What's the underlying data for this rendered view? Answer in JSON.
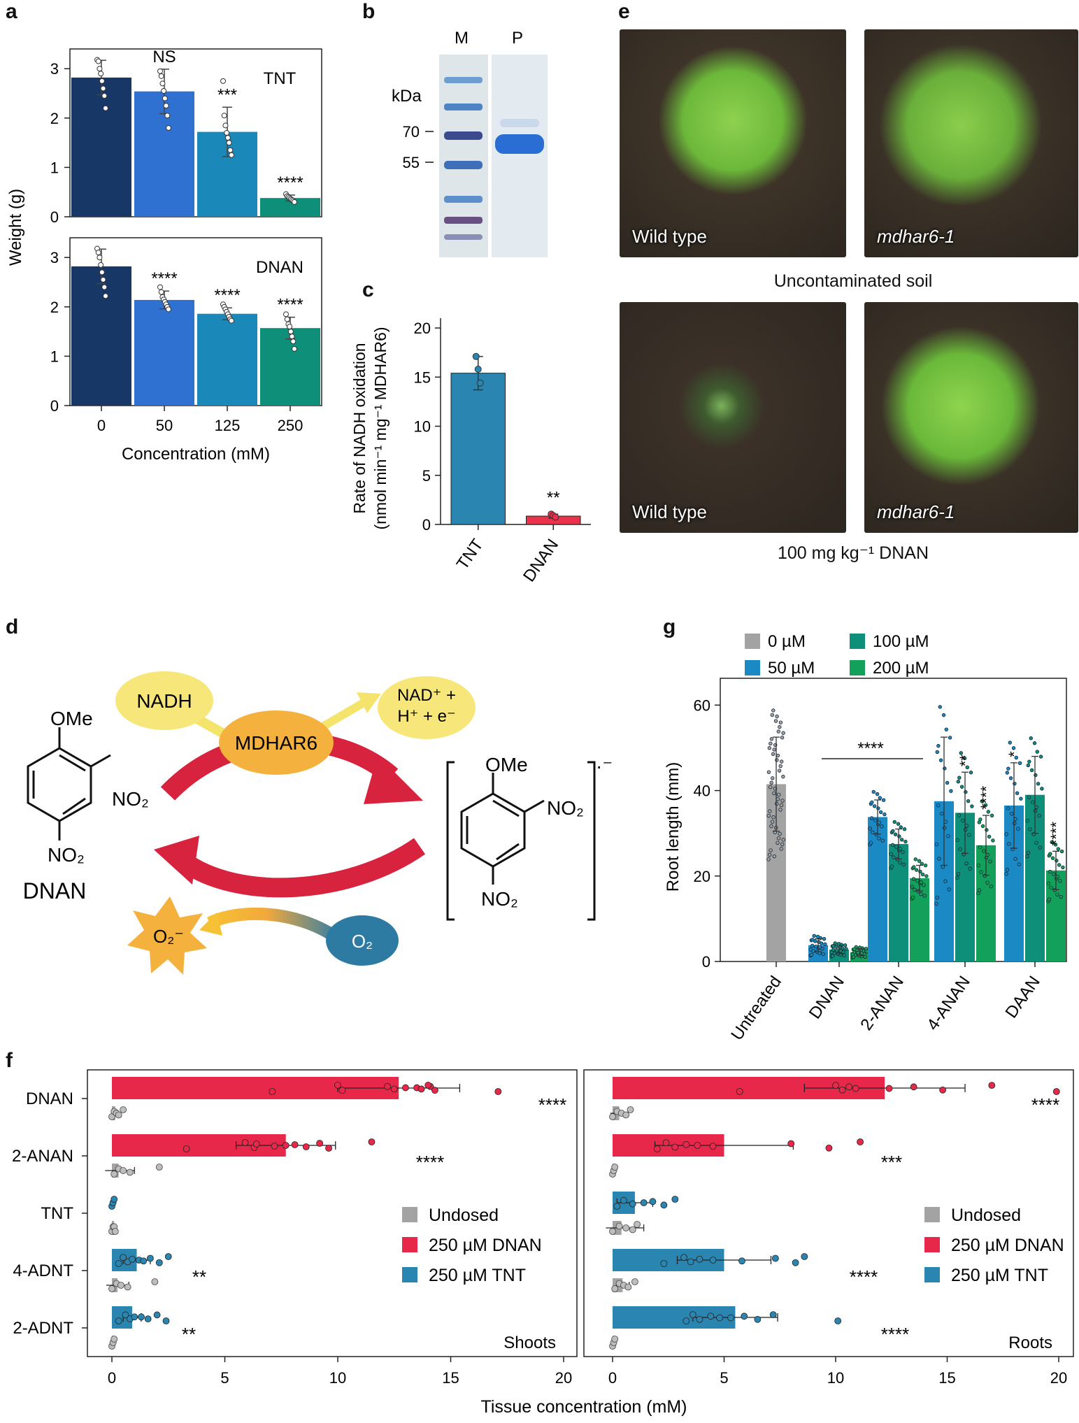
{
  "panel_labels": {
    "a": "a",
    "b": "b",
    "c": "c",
    "d": "d",
    "e": "e",
    "f": "f",
    "g": "g"
  },
  "panel_a": {
    "ylabel": "Weight (g)",
    "xlabel": "Concentration (mM)",
    "categories": [
      "0",
      "50",
      "125",
      "250"
    ],
    "colors": [
      "#173866",
      "#2f71d1",
      "#1a89b9",
      "#0e8f7a"
    ],
    "yticks": [
      0,
      1,
      2,
      3
    ],
    "top": {
      "label": "TNT",
      "values": [
        2.82,
        2.54,
        1.72,
        0.38
      ],
      "errors": [
        0.35,
        0.45,
        0.5,
        0.06
      ],
      "sig": [
        "",
        "NS",
        "***",
        "****"
      ],
      "points": [
        [
          3.18,
          3.15,
          3.0,
          2.9,
          2.75,
          2.6,
          2.45,
          2.2
        ],
        [
          2.95,
          2.85,
          2.7,
          2.55,
          2.4,
          2.25,
          2.05,
          1.8
        ],
        [
          2.75,
          2.05,
          1.85,
          1.7,
          1.6,
          1.5,
          1.35,
          1.25
        ],
        [
          0.46,
          0.42,
          0.4,
          0.38,
          0.36,
          0.34,
          0.32,
          0.3
        ]
      ]
    },
    "bottom": {
      "label": "DNAN",
      "values": [
        2.82,
        2.14,
        1.86,
        1.57
      ],
      "errors": [
        0.35,
        0.18,
        0.12,
        0.22
      ],
      "sig": [
        "",
        "****",
        "****",
        "****"
      ],
      "points": [
        [
          3.18,
          3.1,
          3.0,
          2.85,
          2.7,
          2.55,
          2.4,
          2.22
        ],
        [
          2.4,
          2.3,
          2.2,
          2.15,
          2.1,
          2.05,
          2.0,
          1.95
        ],
        [
          2.05,
          2.0,
          1.95,
          1.9,
          1.85,
          1.8,
          1.75,
          1.72
        ],
        [
          1.85,
          1.75,
          1.65,
          1.6,
          1.5,
          1.4,
          1.3,
          1.15
        ]
      ]
    }
  },
  "panel_b": {
    "lanes": [
      "M",
      "P"
    ],
    "unit": "kDa",
    "markers": [
      "70",
      "55"
    ]
  },
  "panel_c": {
    "ylabel_line1": "Rate of NADH oxidation",
    "ylabel_line2": "(nmol min⁻¹ mg⁻¹ MDHAR6)",
    "categories": [
      "TNT",
      "DNAN"
    ],
    "values": [
      15.4,
      0.85
    ],
    "errors": [
      1.7,
      0.2
    ],
    "colors": [
      "#2a86b0",
      "#e8334a"
    ],
    "sig": [
      "",
      "**"
    ],
    "yticks": [
      0,
      5,
      10,
      15,
      20
    ],
    "points": [
      [
        17.1,
        15.8,
        14.4
      ],
      [
        1.05,
        0.9,
        0.75
      ]
    ]
  },
  "panel_d": {
    "nadh": "NADH",
    "enzyme": "MDHAR6",
    "nad_line1": "NAD⁺ +",
    "nad_line2": "H⁺ + e⁻",
    "ome": "OMe",
    "no2": "NO₂",
    "compound": "DNAN",
    "radical_charge": "·⁻",
    "o2": "O₂",
    "superoxide": "O₂⁻"
  },
  "panel_e": {
    "photo_labels": [
      "Wild type",
      "mdhar6-1",
      "Wild type",
      "mdhar6-1"
    ],
    "caption_top": "Uncontaminated soil",
    "caption_bottom": "100 mg kg⁻¹ DNAN"
  },
  "panel_g": {
    "ylabel": "Root length (mm)",
    "yticks": [
      0,
      20,
      40,
      60
    ],
    "legend": [
      {
        "name": "0 µM",
        "color": "#a3a3a3"
      },
      {
        "name": "100 µM",
        "color": "#0e8f7a"
      },
      {
        "name": "50 µM",
        "color": "#1a89c4"
      },
      {
        "name": "200 µM",
        "color": "#13a05a"
      }
    ],
    "groups": [
      "Untreated",
      "DNAN",
      "2-ANAN",
      "4-ANAN",
      "DAAN"
    ],
    "bars": [
      {
        "group": 0,
        "series": 0,
        "value": 41.5,
        "err": 11,
        "sig": ""
      },
      {
        "group": 1,
        "series": 1,
        "value": 3.8,
        "err": 1.5,
        "sig": ""
      },
      {
        "group": 1,
        "series": 2,
        "value": 2.8,
        "err": 1.0,
        "sig": ""
      },
      {
        "group": 1,
        "series": 3,
        "value": 2.2,
        "err": 0.8,
        "sig": ""
      },
      {
        "group": 2,
        "series": 1,
        "value": 33.8,
        "err": 4.0,
        "sig": ""
      },
      {
        "group": 2,
        "series": 2,
        "value": 27.5,
        "err": 3.5,
        "sig": ""
      },
      {
        "group": 2,
        "series": 3,
        "value": 19.5,
        "err": 3.0,
        "sig": ""
      },
      {
        "group": 3,
        "series": 1,
        "value": 37.5,
        "err": 15.0,
        "sig": ""
      },
      {
        "group": 3,
        "series": 2,
        "value": 34.8,
        "err": 9.5,
        "sig": "**"
      },
      {
        "group": 3,
        "series": 3,
        "value": 27.2,
        "err": 7.0,
        "sig": "****"
      },
      {
        "group": 4,
        "series": 1,
        "value": 36.5,
        "err": 10.0,
        "sig": "*"
      },
      {
        "group": 4,
        "series": 2,
        "value": 39.0,
        "err": 9.0,
        "sig": ""
      },
      {
        "group": 4,
        "series": 3,
        "value": 21.3,
        "err": 4.5,
        "sig": "****"
      }
    ],
    "bracket_sig": "****"
  },
  "panel_f": {
    "xlabel": "Tissue concentration (mM)",
    "categories": [
      "DNAN",
      "2-ANAN",
      "TNT",
      "4-ADNT",
      "2-ADNT"
    ],
    "xticks": [
      0,
      5,
      10,
      15,
      20
    ],
    "legend": [
      {
        "name": "Undosed",
        "color": "#a3a3a3"
      },
      {
        "name": "250 µM DNAN",
        "color": "#e8284a"
      },
      {
        "name": "250 µM TNT",
        "color": "#2a86b0"
      }
    ],
    "shoots": {
      "label": "Shoots",
      "dosed": [
        12.7,
        7.7,
        0,
        1.1,
        0.9
      ],
      "dosed_err": [
        2.7,
        2.2,
        0,
        0.6,
        0.4
      ],
      "dosed_type": [
        "DNAN",
        "DNAN",
        "TNT",
        "TNT",
        "TNT"
      ],
      "undosed": [
        0.15,
        0.3,
        0.1,
        0.25,
        0.05
      ],
      "undosed_err": [
        0.1,
        0.7,
        0.05,
        0.5,
        0.05
      ],
      "sig": [
        "****",
        "****",
        "",
        "**",
        "**"
      ],
      "points": [
        [
          7.1,
          10.0,
          10.2,
          12.2,
          12.5,
          13.0,
          13.5,
          13.7,
          14.1,
          14.3,
          14.0,
          17.1
        ],
        [
          3.3,
          5.9,
          6.3,
          6.4,
          7.2,
          7.7,
          8.1,
          8.6,
          9.2,
          9.6,
          11.5
        ],
        [
          0,
          0.05,
          0.1
        ],
        [
          0.3,
          0.5,
          0.7,
          0.9,
          1.2,
          1.4,
          1.7,
          2.1,
          2.5
        ],
        [
          0.3,
          0.6,
          0.8,
          1.0,
          1.3,
          1.6,
          2.0,
          2.4
        ]
      ],
      "undosed_points": [
        [
          0.0,
          0.1,
          0.2,
          0.3,
          0.5
        ],
        [
          0.1,
          0.3,
          0.5,
          0.8,
          2.1
        ],
        [
          0.0,
          0.05,
          0.1,
          0.15
        ],
        [
          0.0,
          0.2,
          0.4,
          0.7,
          1.9
        ],
        [
          0.0,
          0.05,
          0.1
        ]
      ]
    },
    "roots": {
      "label": "Roots",
      "dosed": [
        12.2,
        5.0,
        1.0,
        5.0,
        5.5
      ],
      "dosed_err": [
        3.6,
        3.1,
        0.8,
        2.1,
        1.9
      ],
      "dosed_type": [
        "DNAN",
        "DNAN",
        "TNT",
        "TNT",
        "TNT"
      ],
      "undosed": [
        0.3,
        0.05,
        0.4,
        0.45,
        0.05
      ],
      "undosed_err": [
        0.4,
        0.05,
        1.0,
        0.3,
        0.05
      ],
      "sig": [
        "****",
        "***",
        "",
        "****",
        "****"
      ],
      "points": [
        [
          5.7,
          10.0,
          10.3,
          10.6,
          10.9,
          12.4,
          13.5,
          14.8,
          17.0,
          19.9
        ],
        [
          2.0,
          2.4,
          2.8,
          3.3,
          3.8,
          4.5,
          8.0,
          9.7,
          11.1
        ],
        [
          0.2,
          0.5,
          0.9,
          1.4,
          1.8,
          2.3,
          2.8
        ],
        [
          2.3,
          3.2,
          3.5,
          3.9,
          4.5,
          5.8,
          7.3,
          8.2,
          8.6
        ],
        [
          3.3,
          3.6,
          3.9,
          4.4,
          4.8,
          5.3,
          5.9,
          6.5,
          7.2,
          10.1
        ]
      ],
      "undosed_points": [
        [
          0.0,
          0.2,
          0.4,
          0.6,
          0.8
        ],
        [
          0.0,
          0.05,
          0.1
        ],
        [
          0.0,
          0.3,
          0.6,
          0.9,
          1.1
        ],
        [
          0.1,
          0.3,
          0.5,
          0.7,
          1.0
        ],
        [
          0.0,
          0.05,
          0.1
        ]
      ]
    }
  }
}
